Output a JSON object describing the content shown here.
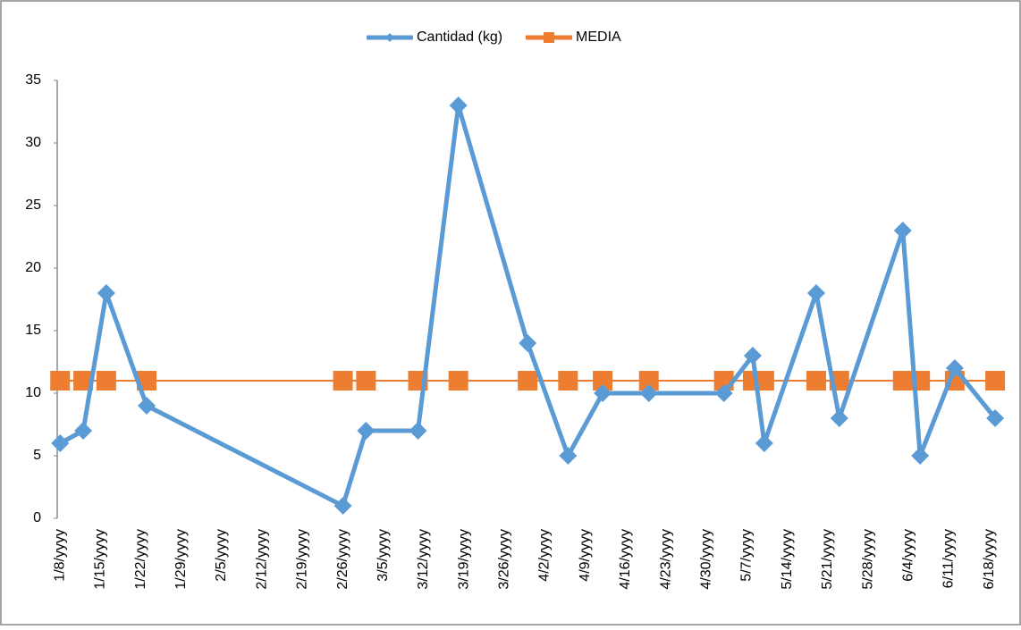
{
  "chart_data": {
    "type": "line",
    "x": [
      8,
      12,
      16,
      23,
      57,
      61,
      70,
      77,
      89,
      96,
      102,
      110,
      123,
      128,
      130,
      139,
      143,
      154,
      157,
      163,
      170
    ],
    "series": [
      {
        "name": "Cantidad (kg)",
        "color": "#5b9bd5",
        "marker": "diamond",
        "values": [
          6,
          7,
          18,
          9,
          1,
          7,
          7,
          33,
          14,
          5,
          10,
          10,
          10,
          13,
          6,
          18,
          8,
          23,
          5,
          12,
          8
        ]
      },
      {
        "name": "MEDIA",
        "color": "#ed7d31",
        "marker": "square",
        "values": [
          11,
          11,
          11,
          11,
          11,
          11,
          11,
          11,
          11,
          11,
          11,
          11,
          11,
          11,
          11,
          11,
          11,
          11,
          11,
          11,
          11
        ]
      }
    ],
    "xlim": [
      7.5,
      172
    ],
    "xticks": [
      {
        "value": 8,
        "label": "1/8/yyyy"
      },
      {
        "value": 15,
        "label": "1/15/yyyy"
      },
      {
        "value": 22,
        "label": "1/22/yyyy"
      },
      {
        "value": 29,
        "label": "1/29/yyyy"
      },
      {
        "value": 36,
        "label": "2/5/yyyy"
      },
      {
        "value": 43,
        "label": "2/12/yyyy"
      },
      {
        "value": 50,
        "label": "2/19/yyyy"
      },
      {
        "value": 57,
        "label": "2/26/yyyy"
      },
      {
        "value": 64,
        "label": "3/5/yyyy"
      },
      {
        "value": 71,
        "label": "3/12/yyyy"
      },
      {
        "value": 78,
        "label": "3/19/yyyy"
      },
      {
        "value": 85,
        "label": "3/26/yyyy"
      },
      {
        "value": 92,
        "label": "4/2/yyyy"
      },
      {
        "value": 99,
        "label": "4/9/yyyy"
      },
      {
        "value": 106,
        "label": "4/16/yyyy"
      },
      {
        "value": 113,
        "label": "4/23/yyyy"
      },
      {
        "value": 120,
        "label": "4/30/yyyy"
      },
      {
        "value": 127,
        "label": "5/7/yyyy"
      },
      {
        "value": 134,
        "label": "5/14/yyyy"
      },
      {
        "value": 141,
        "label": "5/21/yyyy"
      },
      {
        "value": 148,
        "label": "5/28/yyyy"
      },
      {
        "value": 155,
        "label": "6/4/yyyy"
      },
      {
        "value": 162,
        "label": "6/11/yyyy"
      },
      {
        "value": 169,
        "label": "6/18/yyyy"
      }
    ],
    "ylim": [
      0,
      35
    ],
    "yticks": [
      0,
      5,
      10,
      15,
      20,
      25,
      30,
      35
    ],
    "grid": false,
    "legend": "top"
  }
}
